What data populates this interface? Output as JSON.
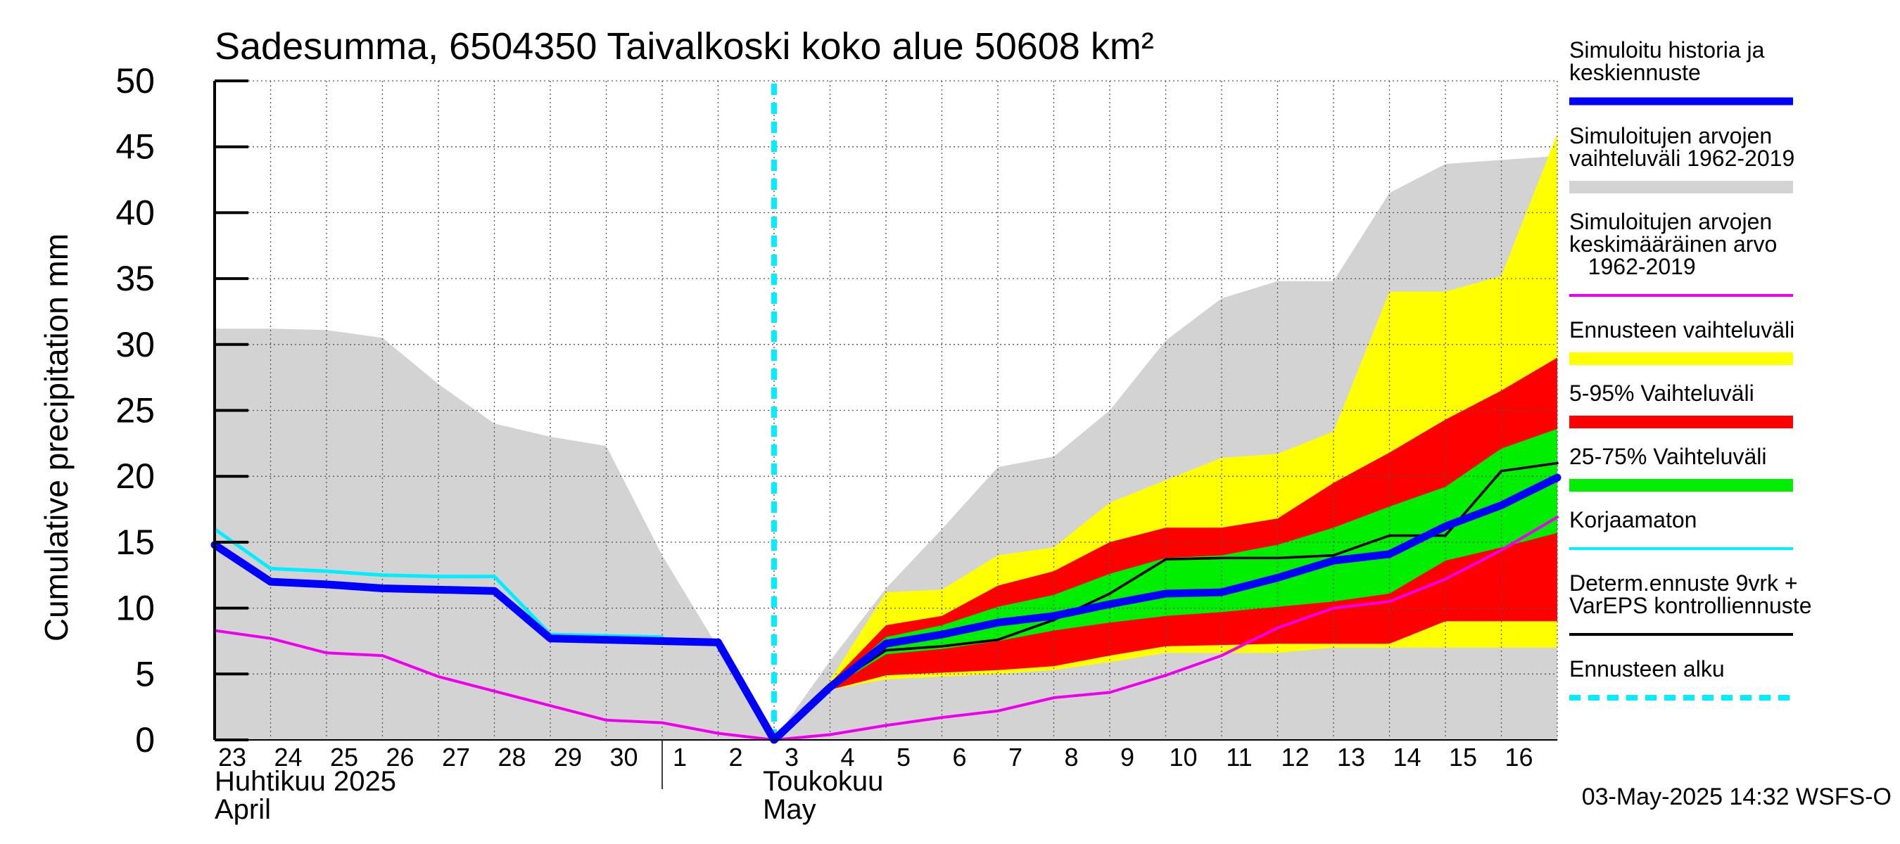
{
  "chart_data": {
    "type": "area",
    "title": "Sadesumma, 6504350 Taivalkoski koko alue 50608 km²",
    "ylabel": "Cumulative precipitation   mm",
    "ylim": [
      0,
      50
    ],
    "yticks": [
      0,
      5,
      10,
      15,
      20,
      25,
      30,
      35,
      40,
      45,
      50
    ],
    "x_day_labels": [
      "23",
      "24",
      "25",
      "26",
      "27",
      "28",
      "29",
      "30",
      "1",
      "2",
      "3",
      "4",
      "5",
      "6",
      "7",
      "8",
      "9",
      "10",
      "11",
      "12",
      "13",
      "14",
      "15",
      "16"
    ],
    "month_labels": {
      "april_fi": "Huhtikuu  2025",
      "april_en": "April",
      "may_fi": "Toukokuu",
      "may_en": "May"
    },
    "timestamp": "03-May-2025 14:32 WSFS-O",
    "forecast_start_day": 10.0,
    "colors": {
      "history_band": "#d3d3d3",
      "forecast_range": "#ffff00",
      "p5_95": "#ff0000",
      "p25_75": "#00ee00",
      "simulated": "#0000ff",
      "mean": "#ee00ee",
      "uncorrected": "#00eeff",
      "deterministic": "#000000",
      "forecast_start": "#00eeff"
    },
    "history_band": {
      "x": [
        0,
        1,
        2,
        3,
        4,
        5,
        6,
        7,
        8,
        9,
        10,
        11,
        12,
        13,
        14,
        15,
        16,
        17,
        18,
        19,
        20,
        21,
        22,
        23,
        24
      ],
      "upper": [
        31.2,
        31.2,
        31.1,
        30.5,
        27.0,
        24.0,
        23.0,
        22.3,
        14.0,
        7.0,
        0.0,
        6.0,
        11.5,
        16.0,
        20.7,
        21.5,
        25.0,
        30.3,
        33.5,
        34.8,
        34.8,
        41.5,
        43.7,
        44.0,
        44.3
      ],
      "lower": [
        0,
        0,
        0,
        0,
        0,
        0,
        0,
        0,
        0,
        0,
        0,
        0,
        0,
        0,
        0,
        0,
        0,
        0,
        0,
        0,
        0,
        0,
        0,
        0,
        0
      ]
    },
    "forecast_range": {
      "x": [
        10,
        11,
        12,
        13,
        14,
        15,
        16,
        17,
        18,
        19,
        20,
        21,
        22,
        23,
        24
      ],
      "upper": [
        0.0,
        4.5,
        11.2,
        11.4,
        14.0,
        14.6,
        18.0,
        19.7,
        21.4,
        21.7,
        23.4,
        34.0,
        34.0,
        35.2,
        46.0
      ],
      "lower": [
        0.0,
        3.8,
        4.6,
        4.8,
        5.0,
        5.3,
        5.9,
        6.6,
        6.6,
        6.6,
        7.0,
        7.0,
        7.0,
        7.0,
        7.0
      ]
    },
    "p5_95": {
      "x": [
        10,
        11,
        12,
        13,
        14,
        15,
        16,
        17,
        18,
        19,
        20,
        21,
        22,
        23,
        24
      ],
      "upper": [
        0.0,
        4.3,
        8.7,
        9.4,
        11.7,
        12.8,
        15.0,
        16.1,
        16.1,
        16.8,
        19.5,
        21.8,
        24.3,
        26.5,
        29.0
      ],
      "lower": [
        0.0,
        3.8,
        4.9,
        5.1,
        5.3,
        5.6,
        6.4,
        7.1,
        7.2,
        7.3,
        7.3,
        7.3,
        9.0,
        9.0,
        9.0
      ]
    },
    "p25_75": {
      "x": [
        10,
        11,
        12,
        13,
        14,
        15,
        16,
        17,
        18,
        19,
        20,
        21,
        22,
        23,
        24
      ],
      "upper": [
        0.0,
        4.1,
        7.8,
        8.7,
        10.1,
        11.0,
        12.6,
        13.8,
        14.0,
        14.8,
        16.1,
        17.7,
        19.2,
        22.1,
        23.6
      ],
      "lower": [
        0.0,
        3.9,
        6.5,
        6.9,
        7.5,
        8.3,
        8.9,
        9.4,
        9.7,
        10.1,
        10.5,
        11.1,
        13.6,
        14.6,
        15.7
      ]
    },
    "series": [
      {
        "name": "Simuloitu historia ja keskiennuste",
        "x": [
          0,
          1,
          2,
          3,
          4,
          5,
          6,
          7,
          8,
          9,
          10,
          11,
          12,
          13,
          14,
          15,
          16,
          17,
          18,
          19,
          20,
          21,
          22,
          23,
          24
        ],
        "values": [
          14.8,
          12.0,
          11.8,
          11.5,
          11.4,
          11.3,
          7.7,
          7.6,
          7.5,
          7.4,
          0.0,
          4.0,
          7.3,
          8.0,
          8.9,
          9.4,
          10.3,
          11.1,
          11.2,
          12.3,
          13.6,
          14.1,
          16.2,
          17.8,
          19.9
        ]
      },
      {
        "name": "Korjaamaton",
        "x": [
          0,
          1,
          2,
          3,
          4,
          5,
          6,
          7,
          8
        ],
        "values": [
          16.0,
          13.0,
          12.8,
          12.5,
          12.4,
          12.4,
          8.0,
          7.9,
          7.8
        ]
      },
      {
        "name": "Simuloitujen arvojen keskimääräinen arvo 1962-2019",
        "x": [
          0,
          1,
          2,
          3,
          4,
          5,
          6,
          7,
          8,
          9,
          10,
          11,
          12,
          13,
          14,
          15,
          16,
          17,
          18,
          19,
          20,
          21,
          22,
          23,
          24
        ],
        "values": [
          8.3,
          7.7,
          6.6,
          6.4,
          4.8,
          3.7,
          2.6,
          1.5,
          1.3,
          0.5,
          0.0,
          0.4,
          1.1,
          1.7,
          2.2,
          3.2,
          3.6,
          4.9,
          6.4,
          8.5,
          10.0,
          10.5,
          12.2,
          14.4,
          16.9
        ]
      },
      {
        "name": "Determ.ennuste 9vrk + VarEPS kontrolliennuste",
        "x": [
          10,
          11,
          12,
          13,
          14,
          15,
          16,
          17,
          18,
          19,
          20,
          21,
          22,
          23,
          24
        ],
        "values": [
          0.0,
          4.0,
          6.8,
          7.1,
          7.6,
          9.1,
          11.1,
          13.7,
          13.8,
          13.8,
          14.0,
          15.5,
          15.5,
          20.4,
          21.0
        ]
      }
    ],
    "legend": [
      {
        "label": "Simuloitu historia ja\nkeskiennuste",
        "style": "thick",
        "color": "#0000ff"
      },
      {
        "label": "Simuloitujen arvojen\nvaihteluväli 1962-2019",
        "style": "band",
        "color": "#d3d3d3"
      },
      {
        "label": "Simuloitujen arvojen\nkeskimääräinen arvo\n   1962-2019",
        "style": "line",
        "color": "#ee00ee"
      },
      {
        "label": "Ennusteen vaihteluväli",
        "style": "band",
        "color": "#ffff00"
      },
      {
        "label": "5-95% Vaihteluväli",
        "style": "band",
        "color": "#ff0000"
      },
      {
        "label": "25-75% Vaihteluväli",
        "style": "band",
        "color": "#00ee00"
      },
      {
        "label": "Korjaamaton",
        "style": "line",
        "color": "#00eeff"
      },
      {
        "label": "Determ.ennuste 9vrk +\nVarEPS kontrolliennuste",
        "style": "line",
        "color": "#000000"
      },
      {
        "label": "Ennusteen alku",
        "style": "dashed",
        "color": "#00eeff"
      }
    ]
  }
}
